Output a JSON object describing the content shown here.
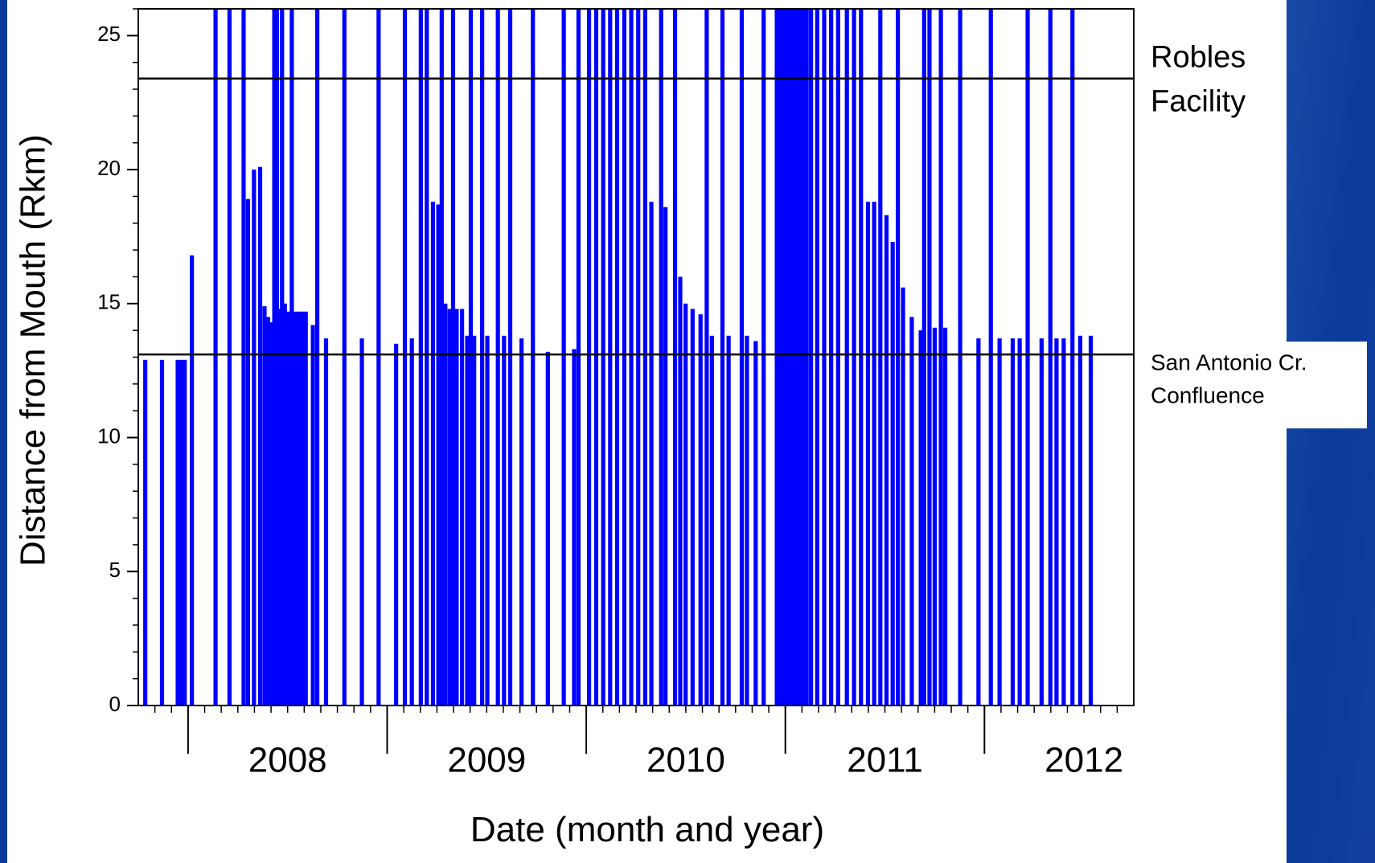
{
  "chart_data": {
    "type": "bar",
    "y_label": "Distance from Mouth (Rkm)",
    "x_label": "Date (month and year)",
    "color": "#0000ff",
    "xlim": [
      2007.75,
      2012.75
    ],
    "xticks": [
      2008,
      2009,
      2010,
      2011,
      2012
    ],
    "ylim": [
      0,
      26
    ],
    "yticks": [
      0,
      5,
      10,
      15,
      20,
      25
    ],
    "reference_lines": [
      {
        "value": 23.4,
        "lines": [
          "Robles",
          "Facility"
        ]
      },
      {
        "value": 13.1,
        "lines": [
          "San Antonio Cr.",
          "Confluence"
        ]
      }
    ],
    "x": [
      2007.785,
      2007.869,
      2007.948,
      2007.966,
      2007.983,
      2008.019,
      2008.138,
      2008.208,
      2008.279,
      2008.301,
      2008.331,
      2008.362,
      2008.384,
      2008.402,
      2008.42,
      2008.433,
      2008.446,
      2008.459,
      2008.472,
      2008.486,
      2008.503,
      2008.521,
      2008.539,
      2008.556,
      2008.574,
      2008.591,
      2008.627,
      2008.649,
      2008.693,
      2008.785,
      2008.873,
      2008.957,
      2009.045,
      2009.089,
      2009.124,
      2009.169,
      2009.199,
      2009.23,
      2009.257,
      2009.274,
      2009.292,
      2009.314,
      2009.331,
      2009.349,
      2009.376,
      2009.402,
      2009.42,
      2009.437,
      2009.477,
      2009.503,
      2009.556,
      2009.587,
      2009.618,
      2009.675,
      2009.732,
      2009.807,
      2009.887,
      2009.939,
      2009.961,
      2010.014,
      2010.05,
      2010.085,
      2010.12,
      2010.155,
      2010.191,
      2010.226,
      2010.261,
      2010.296,
      2010.327,
      2010.376,
      2010.398,
      2010.446,
      2010.472,
      2010.499,
      2010.534,
      2010.574,
      2010.605,
      2010.631,
      2010.684,
      2010.715,
      2010.781,
      2010.807,
      2010.851,
      2010.891,
      2010.957,
      2010.975,
      2010.988,
      2011.001,
      2011.019,
      2011.032,
      2011.045,
      2011.058,
      2011.072,
      2011.089,
      2011.107,
      2011.129,
      2011.16,
      2011.195,
      2011.23,
      2011.265,
      2011.309,
      2011.345,
      2011.38,
      2011.415,
      2011.446,
      2011.477,
      2011.508,
      2011.539,
      2011.565,
      2011.591,
      2011.635,
      2011.68,
      2011.697,
      2011.724,
      2011.75,
      2011.781,
      2011.803,
      2011.878,
      2011.97,
      2012.032,
      2012.076,
      2012.142,
      2012.177,
      2012.217,
      2012.287,
      2012.331,
      2012.362,
      2012.398,
      2012.442,
      2012.481,
      2012.534
    ],
    "values": [
      12.9,
      12.9,
      12.9,
      12.9,
      12.9,
      16.8,
      26,
      26,
      26,
      18.9,
      20,
      20.1,
      14.9,
      14.5,
      14.3,
      26,
      26,
      14.8,
      26,
      15,
      14.7,
      26,
      14.7,
      14.7,
      14.7,
      14.7,
      14.2,
      26,
      13.7,
      26,
      13.7,
      26,
      13.5,
      26,
      13.7,
      26,
      26,
      18.8,
      18.7,
      26,
      15,
      14.8,
      26,
      14.8,
      14.8,
      13.8,
      26,
      13.8,
      26,
      13.8,
      26,
      13.8,
      26,
      13.7,
      26,
      13.2,
      26,
      13.3,
      26,
      26,
      26,
      26,
      26,
      26,
      26,
      26,
      26,
      26,
      18.8,
      26,
      18.6,
      26,
      16,
      15,
      14.8,
      14.6,
      26,
      13.8,
      26,
      13.8,
      26,
      13.8,
      13.6,
      26,
      26,
      26,
      26,
      26,
      26,
      26,
      26,
      26,
      26,
      26,
      26,
      26,
      26,
      26,
      26,
      26,
      26,
      26,
      26,
      18.8,
      18.8,
      26,
      18.3,
      17.3,
      26,
      15.6,
      14.5,
      14,
      26,
      26,
      14.1,
      26,
      14.1,
      26,
      13.7,
      26,
      13.7,
      13.7,
      13.7,
      26,
      13.7,
      26,
      13.7,
      13.7,
      26,
      13.8,
      13.8
    ]
  }
}
